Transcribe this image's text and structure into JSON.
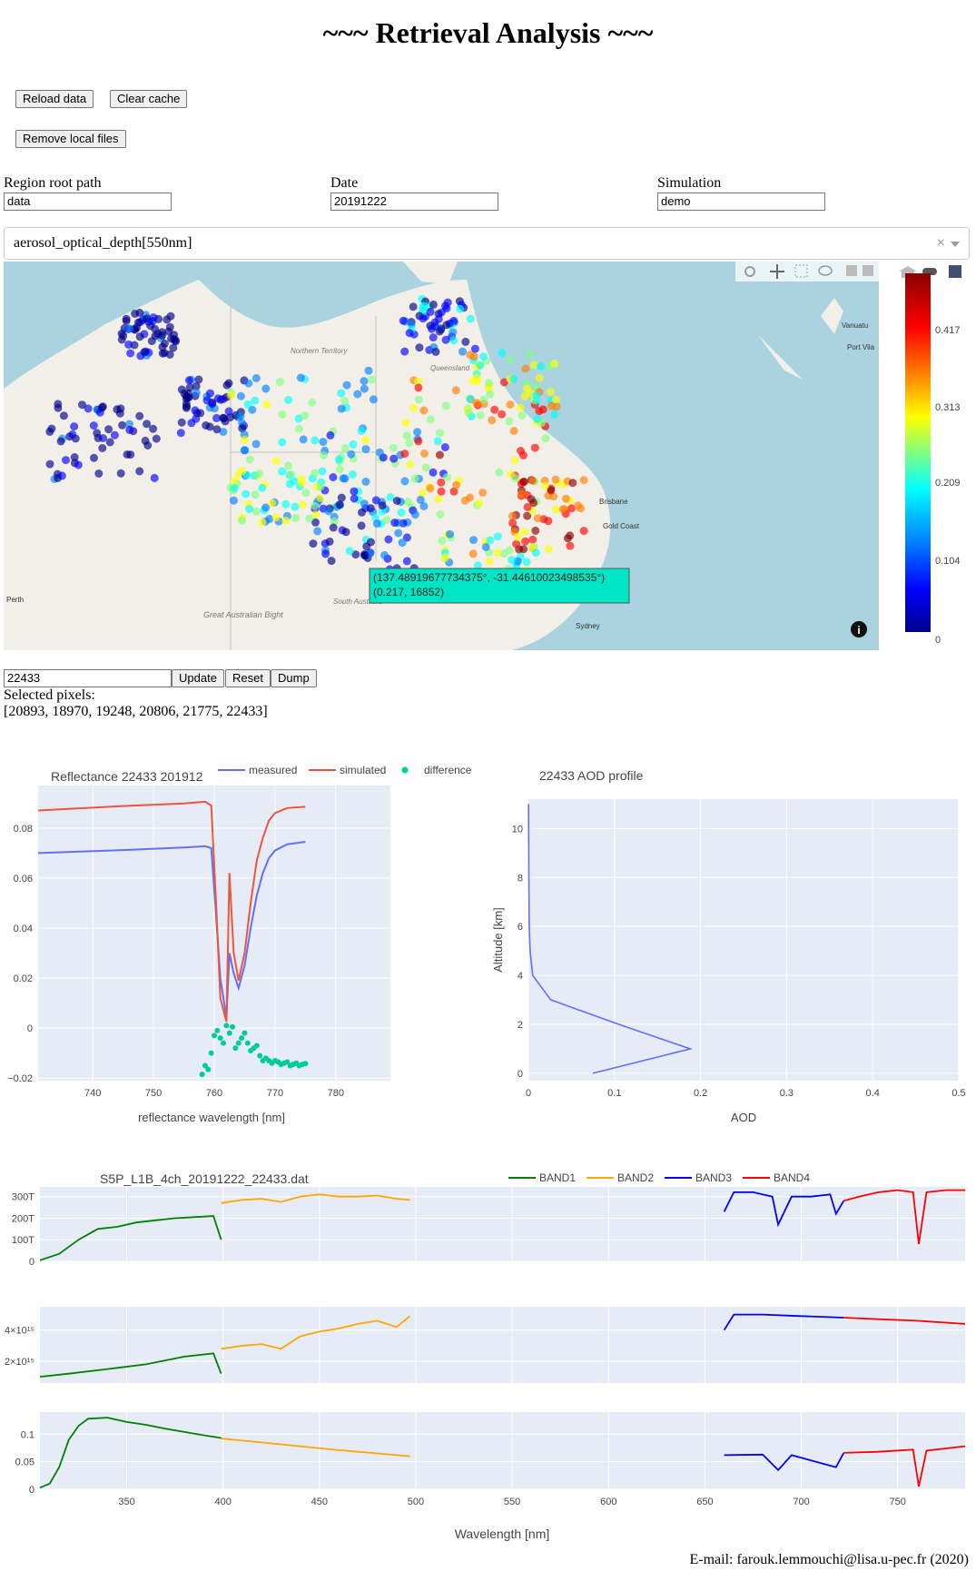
{
  "page_title": "~~~ Retrieval Analysis ~~~",
  "buttons": {
    "reload": "Reload data",
    "clear_cache": "Clear cache",
    "remove_local": "Remove local files",
    "update": "Update",
    "reset": "Reset",
    "dump": "Dump"
  },
  "fields": {
    "region_label": "Region root path",
    "region_value": "data",
    "date_label": "Date",
    "date_value": "20191222",
    "simulation_label": "Simulation",
    "simulation_value": "demo"
  },
  "variable_select": {
    "selected": "aerosol_optical_depth[550nm]",
    "clear": "×"
  },
  "map": {
    "labels": [
      "Northern Territory",
      "Queensland",
      "South Australia",
      "Great Australian Bight",
      "Perth",
      "Brisbane",
      "Gold Coast",
      "Sydney",
      "Vanuatu",
      "Port Vila"
    ],
    "tooltip_line1": "(137.48919677734375°, -31.44610023498535°)",
    "tooltip_line2": "(0.217, 16852)",
    "colorbar_ticks": [
      "0.417",
      "0.313",
      "0.209",
      "0.104",
      "0"
    ],
    "colorscale": [
      "#00008b",
      "#0000ff",
      "#0080ff",
      "#00ffff",
      "#80ff80",
      "#ffff00",
      "#ff8000",
      "#ff0000",
      "#8b0000"
    ],
    "modebar_icons": [
      "camera-icon",
      "pan-icon",
      "box-select-icon",
      "lasso-icon",
      "zoom-in-icon",
      "zoom-out-icon",
      "home-icon",
      "toggle-icon",
      "plotly-logo-icon"
    ],
    "info_icon": "i"
  },
  "pixel_input": {
    "value": "22433"
  },
  "selected_pixels": {
    "label": "Selected pixels:",
    "list": "[20893, 18970, 19248, 20806, 21775, 22433]"
  },
  "footer": "E-mail: farouk.lemmouchi@lisa.u-pec.fr (2020)",
  "chart_data": [
    {
      "type": "line",
      "title": "Reflectance 22433 201912",
      "xlabel": "reflectance wavelength [nm]",
      "ylabel": "",
      "xlim": [
        731,
        789
      ],
      "ylim": [
        -0.021,
        0.097
      ],
      "xticks": [
        740,
        750,
        760,
        770,
        780
      ],
      "yticks": [
        -0.02,
        0,
        0.02,
        0.04,
        0.06,
        0.08
      ],
      "ytick_labels": [
        "−0.02",
        "0",
        "0.02",
        "0.04",
        "0.06",
        "0.08"
      ],
      "legend": [
        "measured",
        "simulated",
        "difference"
      ],
      "series": [
        {
          "name": "measured",
          "color": "#636efa",
          "x": [
            731,
            745,
            755,
            758.5,
            759.5,
            760.3,
            761,
            762,
            762.5,
            763.2,
            764,
            765,
            766,
            767,
            768,
            769,
            770,
            772,
            775
          ],
          "y": [
            0.07,
            0.0712,
            0.0722,
            0.0727,
            0.072,
            0.045,
            0.02,
            0.004,
            0.03,
            0.022,
            0.016,
            0.025,
            0.04,
            0.053,
            0.062,
            0.068,
            0.071,
            0.0735,
            0.0745
          ]
        },
        {
          "name": "simulated",
          "color": "#ef553b",
          "x": [
            731,
            745,
            755,
            758.5,
            759.5,
            760.3,
            761,
            762,
            762.5,
            763.2,
            764,
            765,
            766,
            767,
            768,
            769,
            770,
            772,
            775
          ],
          "y": [
            0.087,
            0.0888,
            0.0898,
            0.0905,
            0.089,
            0.05,
            0.012,
            0.0025,
            0.062,
            0.03,
            0.019,
            0.03,
            0.05,
            0.067,
            0.076,
            0.083,
            0.086,
            0.088,
            0.0885
          ]
        },
        {
          "name": "difference",
          "color": "#00cc96",
          "mode": "markers",
          "x": [
            758,
            758.5,
            759,
            759.5,
            760,
            760.5,
            761,
            761.5,
            762,
            762.5,
            763,
            763.5,
            764,
            764.5,
            765,
            765.5,
            766,
            766.5,
            767,
            767.5,
            768,
            768.5,
            769,
            769.5,
            770,
            770.5,
            771,
            771.5,
            772,
            772.5,
            773,
            773.5,
            774,
            774.5,
            775
          ],
          "y": [
            -0.0185,
            -0.015,
            -0.0165,
            -0.01,
            -0.003,
            -0.001,
            -0.004,
            -0.006,
            0.001,
            -0.002,
            0.0005,
            -0.008,
            -0.006,
            -0.004,
            -0.002,
            -0.006,
            -0.009,
            -0.008,
            -0.007,
            -0.011,
            -0.013,
            -0.012,
            -0.013,
            -0.014,
            -0.013,
            -0.0135,
            -0.0145,
            -0.014,
            -0.0135,
            -0.015,
            -0.0145,
            -0.014,
            -0.015,
            -0.0145,
            -0.0142
          ]
        }
      ]
    },
    {
      "type": "line",
      "title": "22433 AOD profile",
      "xlabel": "AOD",
      "ylabel": "Altitude [km]",
      "xlim": [
        0,
        0.5
      ],
      "ylim": [
        -0.3,
        11.2
      ],
      "xticks": [
        0,
        0.1,
        0.2,
        0.3,
        0.4,
        0.5
      ],
      "yticks": [
        0,
        2,
        4,
        6,
        8,
        10
      ],
      "series": [
        {
          "name": "",
          "color": "#636efa",
          "x": [
            0.075,
            0.188,
            0.105,
            0.026,
            0.005,
            0.002,
            0.001,
            0.0005,
            0.0002
          ],
          "y": [
            0,
            1,
            2,
            3,
            4,
            5,
            6,
            8,
            11
          ]
        }
      ]
    },
    {
      "type": "line",
      "title": "S5P_L1B_4ch_20191222_22433.dat",
      "xlabel": "Wavelength [nm]",
      "xlim": [
        305,
        785
      ],
      "xticks": [
        350,
        400,
        450,
        500,
        550,
        600,
        650,
        700,
        750
      ],
      "legend": [
        "BAND1",
        "BAND2",
        "BAND3",
        "BAND4"
      ],
      "band_colors": {
        "BAND1": "#008000",
        "BAND2": "#ffa500",
        "BAND3": "#0000ff",
        "BAND4": "#ff0000"
      },
      "panels": [
        {
          "ylim": [
            0,
            345
          ],
          "yticks": [
            0,
            100,
            200,
            300
          ],
          "ytick_labels": [
            "0",
            "100T",
            "200T",
            "300T"
          ],
          "series": [
            {
              "name": "BAND1",
              "x": [
                305,
                315,
                325,
                335,
                345,
                355,
                365,
                375,
                385,
                395,
                399
              ],
              "y": [
                5,
                35,
                100,
                150,
                160,
                180,
                190,
                200,
                205,
                210,
                100
              ]
            },
            {
              "name": "BAND2",
              "x": [
                399,
                410,
                420,
                430,
                440,
                450,
                460,
                470,
                480,
                490,
                497
              ],
              "y": [
                270,
                285,
                290,
                275,
                300,
                310,
                300,
                300,
                305,
                290,
                285
              ]
            },
            {
              "name": "BAND3",
              "x": [
                660,
                665,
                675,
                685,
                688,
                695,
                705,
                715,
                718,
                722
              ],
              "y": [
                230,
                320,
                320,
                300,
                170,
                300,
                300,
                310,
                220,
                280
              ]
            },
            {
              "name": "BAND4",
              "x": [
                722,
                730,
                740,
                750,
                758,
                761,
                765,
                775,
                785
              ],
              "y": [
                280,
                300,
                320,
                330,
                320,
                80,
                320,
                330,
                330
              ]
            }
          ]
        },
        {
          "ylim": [
            600000000000000.0,
            5500000000000000.0
          ],
          "yticks": [
            2000000000000000.0,
            4000000000000000.0
          ],
          "ytick_labels": [
            "2×10¹⁵",
            "4×10¹⁵"
          ],
          "series": [
            {
              "name": "BAND1",
              "x": [
                305,
                320,
                340,
                360,
                380,
                395,
                399
              ],
              "y": [
                1000000000000000.0,
                1200000000000000.0,
                1500000000000000.0,
                1800000000000000.0,
                2300000000000000.0,
                2500000000000000.0,
                1200000000000000.0
              ]
            },
            {
              "name": "BAND2",
              "x": [
                399,
                410,
                420,
                430,
                440,
                450,
                460,
                470,
                480,
                490,
                497
              ],
              "y": [
                2800000000000000.0,
                3000000000000000.0,
                3100000000000000.0,
                2800000000000000.0,
                3600000000000000.0,
                3900000000000000.0,
                4100000000000000.0,
                4400000000000000.0,
                4600000000000000.0,
                4200000000000000.0,
                4900000000000000.0
              ]
            },
            {
              "name": "BAND3",
              "x": [
                660,
                665,
                680,
                700,
                722
              ],
              "y": [
                4000000000000000.0,
                5000000000000000.0,
                5000000000000000.0,
                4900000000000000.0,
                4800000000000000.0
              ]
            },
            {
              "name": "BAND4",
              "x": [
                722,
                740,
                760,
                785
              ],
              "y": [
                4800000000000000.0,
                4700000000000000.0,
                4600000000000000.0,
                4400000000000000.0
              ]
            }
          ]
        },
        {
          "ylim": [
            0,
            0.14
          ],
          "yticks": [
            0,
            0.05,
            0.1
          ],
          "ytick_labels": [
            "0",
            "0.05",
            "0.1"
          ],
          "series": [
            {
              "name": "BAND1",
              "x": [
                305,
                310,
                315,
                320,
                325,
                330,
                340,
                350,
                360,
                370,
                380,
                390,
                399
              ],
              "y": [
                0.003,
                0.01,
                0.04,
                0.09,
                0.115,
                0.128,
                0.13,
                0.122,
                0.117,
                0.11,
                0.104,
                0.098,
                0.093
              ]
            },
            {
              "name": "BAND2",
              "x": [
                399,
                420,
                440,
                460,
                480,
                497
              ],
              "y": [
                0.092,
                0.085,
                0.078,
                0.071,
                0.065,
                0.06
              ]
            },
            {
              "name": "BAND3",
              "x": [
                660,
                680,
                688,
                695,
                718,
                722
              ],
              "y": [
                0.062,
                0.063,
                0.035,
                0.062,
                0.04,
                0.066
              ]
            },
            {
              "name": "BAND4",
              "x": [
                722,
                740,
                758,
                761,
                765,
                785
              ],
              "y": [
                0.066,
                0.068,
                0.072,
                0.005,
                0.07,
                0.078
              ]
            }
          ]
        }
      ]
    }
  ]
}
